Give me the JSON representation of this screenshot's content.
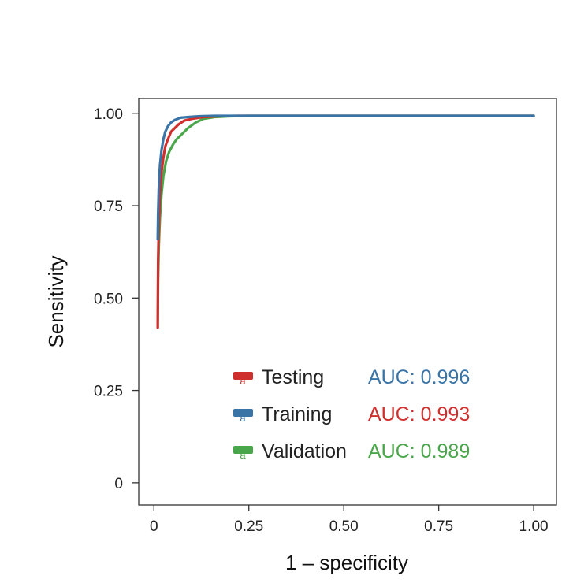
{
  "chart_data": {
    "type": "line",
    "title": "",
    "xlabel": "1 – specificity",
    "ylabel": "Sensitivity",
    "xlim": [
      -0.04,
      1.06
    ],
    "ylim": [
      -0.06,
      1.04
    ],
    "x_ticks": [
      0,
      0.25,
      0.5,
      0.75,
      1.0
    ],
    "x_tick_labels": [
      "0",
      "0.25",
      "0.50",
      "0.75",
      "1.00"
    ],
    "y_ticks": [
      0,
      0.25,
      0.5,
      0.75,
      1.0
    ],
    "y_tick_labels": [
      "0",
      "0.25",
      "0.50",
      "0.75",
      "1.00"
    ],
    "grid": false,
    "legend_position": "bottom-right",
    "series": [
      {
        "name": "Testing",
        "color": "#d0302d",
        "x": [
          0.01,
          0.011,
          0.013,
          0.016,
          0.02,
          0.025,
          0.03,
          0.037,
          0.045,
          0.055,
          0.065,
          0.08,
          0.1,
          0.13,
          0.17,
          0.22,
          1.0
        ],
        "y": [
          0.42,
          0.6,
          0.7,
          0.78,
          0.84,
          0.88,
          0.91,
          0.93,
          0.95,
          0.96,
          0.97,
          0.98,
          0.985,
          0.99,
          0.992,
          0.993,
          0.993
        ]
      },
      {
        "name": "Training",
        "color": "#3a74a6",
        "x": [
          0.01,
          0.011,
          0.013,
          0.016,
          0.02,
          0.025,
          0.03,
          0.037,
          0.045,
          0.055,
          0.07,
          0.09,
          0.12,
          0.16,
          0.2,
          1.0
        ],
        "y": [
          0.66,
          0.73,
          0.8,
          0.86,
          0.9,
          0.93,
          0.95,
          0.965,
          0.975,
          0.982,
          0.988,
          0.99,
          0.992,
          0.993,
          0.993,
          0.993
        ]
      },
      {
        "name": "Validation",
        "color": "#4aa64a",
        "x": [
          0.01,
          0.011,
          0.013,
          0.016,
          0.02,
          0.025,
          0.032,
          0.04,
          0.05,
          0.06,
          0.075,
          0.09,
          0.11,
          0.13,
          0.16,
          0.2,
          0.25,
          1.0
        ],
        "y": [
          0.42,
          0.55,
          0.64,
          0.72,
          0.78,
          0.83,
          0.87,
          0.895,
          0.915,
          0.93,
          0.945,
          0.96,
          0.975,
          0.985,
          0.99,
          0.992,
          0.993,
          0.993
        ]
      }
    ],
    "legend": [
      {
        "label": "Testing",
        "color": "#d0302d",
        "auc_text": "AUC: 0.996",
        "auc_color": "#3a74a6"
      },
      {
        "label": "Training",
        "color": "#3a74a6",
        "auc_text": "AUC: 0.993",
        "auc_color": "#d0302d"
      },
      {
        "label": "Validation",
        "color": "#4aa64a",
        "auc_text": "AUC: 0.989",
        "auc_color": "#4aa64a"
      }
    ]
  }
}
